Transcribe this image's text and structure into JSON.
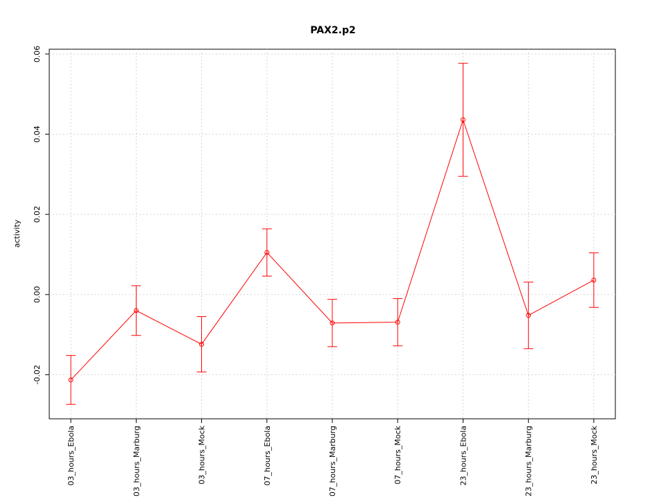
{
  "chart_data": {
    "type": "line",
    "title": "PAX2.p2",
    "y_label": "activity",
    "categories": [
      "03_hours_Ebola",
      "03_hours_Marburg",
      "03_hours_Mock",
      "07_hours_Ebola",
      "07_hours_Marburg",
      "07_hours_Mock",
      "23_hours_Ebola",
      "23_hours_Marburg",
      "23_hours_Mock"
    ],
    "series": [
      {
        "name": "activity",
        "color": "#ff0000",
        "values": [
          -0.0213,
          -0.004,
          -0.0124,
          0.0105,
          -0.0071,
          -0.0069,
          0.0436,
          -0.0052,
          0.0036
        ],
        "errors": [
          0.0061,
          0.0062,
          0.0069,
          0.0059,
          0.0059,
          0.0059,
          0.0141,
          0.0083,
          0.0068
        ]
      }
    ],
    "ylim": [
      -0.031,
      0.0612
    ],
    "yticks": [
      -0.02,
      {
        "value": 0,
        "label": "0.00"
      },
      0.02,
      0.04,
      0.06
    ],
    "grid": true
  }
}
